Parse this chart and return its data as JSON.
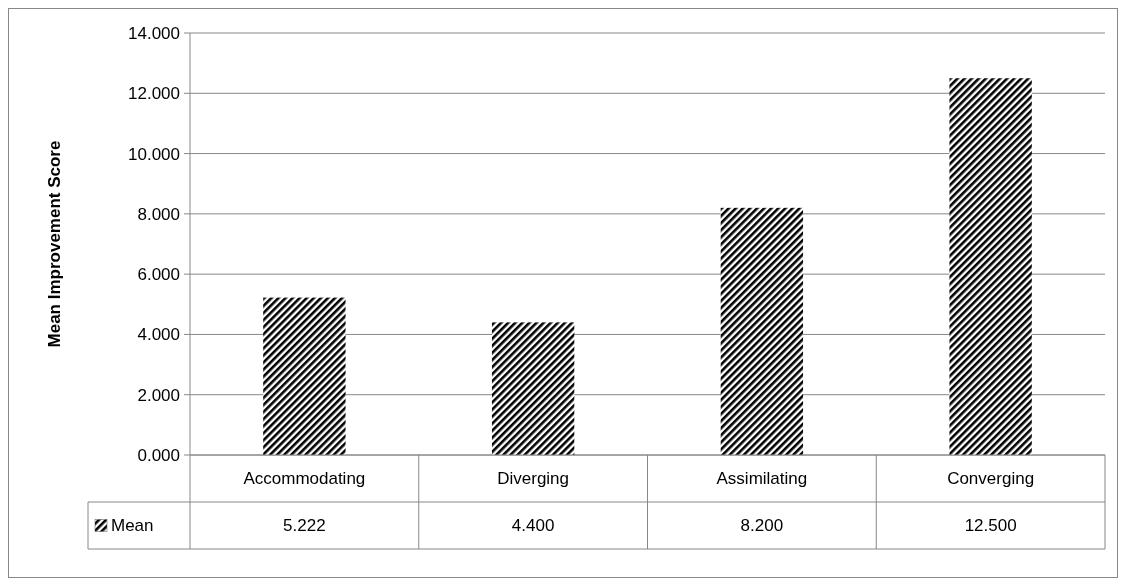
{
  "chart_data": {
    "type": "bar",
    "ylabel": "Mean Improvement Score",
    "categories": [
      "Accommodating",
      "Diverging",
      "Assimilating",
      "Converging"
    ],
    "series": [
      {
        "name": "Mean",
        "color": "#000000",
        "values": [
          5.222,
          4.4,
          8.2,
          12.5
        ],
        "value_labels": [
          "5.222",
          "4.400",
          "8.200",
          "12.500"
        ]
      }
    ],
    "ylim": [
      0,
      14
    ],
    "yticks": [
      {
        "value": 0,
        "label": "0.000"
      },
      {
        "value": 2,
        "label": "2.000"
      },
      {
        "value": 4,
        "label": "4.000"
      },
      {
        "value": 6,
        "label": "6.000"
      },
      {
        "value": 8,
        "label": "8.000"
      },
      {
        "value": 10,
        "label": "10.000"
      },
      {
        "value": 12,
        "label": "12.000"
      },
      {
        "value": 14,
        "label": "14.000"
      }
    ],
    "grid": "y",
    "legend": "bottom"
  }
}
